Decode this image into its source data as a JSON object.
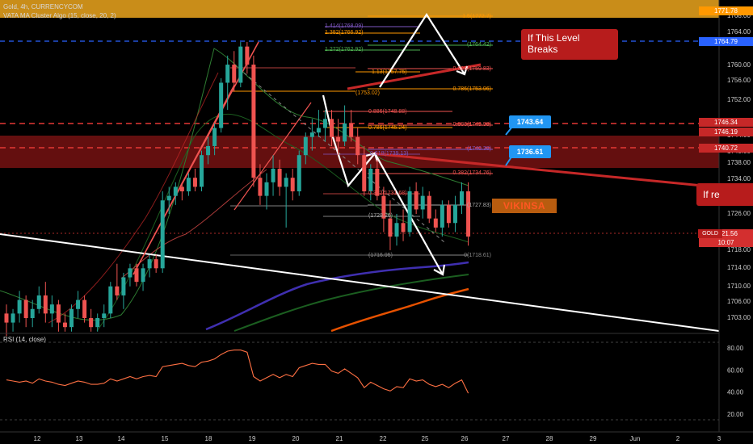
{
  "header": {
    "symbol_line": "Gold, 4h, CURRENCYCOM",
    "indicator_line": "VATA MA Cluster Algo (15, close, 20, 2)",
    "rsi_line": "RSI (14, close)"
  },
  "price_axis": {
    "ticks": [
      "1768.00",
      "1764.00",
      "1760.00",
      "1756.00",
      "1752.00",
      "1748.00",
      "1744.00",
      "1740.00",
      "1738.00",
      "1734.00",
      "1730.00",
      "1726.00",
      "1722.00",
      "1718.00",
      "1714.00",
      "1710.00",
      "1706.00",
      "1703.00"
    ],
    "tags": [
      {
        "text": "1771.78",
        "color": "#ff9800"
      },
      {
        "text": "1764.79",
        "color": "#2962ff"
      },
      {
        "text": "1746.34",
        "color": "#c62828"
      },
      {
        "text": "1746.19",
        "color": "#c62828"
      },
      {
        "text": "1740.72",
        "color": "#c62828"
      },
      {
        "text": "1721.56",
        "color": "#d32f2f"
      },
      {
        "text": "10:07",
        "color": "#d32f2f"
      }
    ],
    "gold_tag": "GOLD"
  },
  "rsi_axis": {
    "ticks": [
      "80.00",
      "60.00",
      "40.00",
      "20.00"
    ]
  },
  "time_axis": {
    "ticks": [
      "12",
      "13",
      "14",
      "15",
      "18",
      "19",
      "20",
      "21",
      "22",
      "25",
      "26",
      "27",
      "28",
      "29",
      "Jun",
      "2",
      "3"
    ]
  },
  "annotations": {
    "callout_top": "If This Level Breaks",
    "callout_right": "If re",
    "label_1": "1743.64",
    "label_2": "1736.61",
    "brand": "VIKINSA"
  },
  "fib_upper": [
    {
      "text": "1.414(1768.09)",
      "color": "#7e57c2"
    },
    {
      "text": "1.382(1766.92)",
      "color": "#ff9800"
    },
    {
      "text": "1.272(1762.92)",
      "color": "#4caf50"
    },
    {
      "text": "1.13(1757.75)",
      "color": "#ff9800"
    },
    {
      "text": "(1753.02)",
      "color": "#ff9800"
    }
  ],
  "fib_mid": [
    {
      "text": "0.886(1748.88)",
      "color": "#ef5350"
    },
    {
      "text": "0.786(1745.24)",
      "color": "#ff9800"
    }
  ],
  "fib_right": [
    {
      "text": "1.5(1772.7)",
      "color": "#ff9800"
    },
    {
      "text": "(1764.42)",
      "color": "#4caf50"
    },
    {
      "text": "0.886(1759.83)",
      "color": "#ef5350"
    },
    {
      "text": "0.786(1753.96)",
      "color": "#ff9800"
    },
    {
      "text": "0.886(1749.98)",
      "color": "#ef5350"
    },
    {
      "text": "(1740.38)",
      "color": "#7e57c2"
    },
    {
      "text": "0.382(1734.76)",
      "color": "#ef5350"
    },
    {
      "text": "(1727.83)",
      "color": "#aaaaaa"
    },
    {
      "text": "0(1718.61)",
      "color": "#888888"
    }
  ],
  "fib_lower": [
    {
      "text": "0.618(1739.13)",
      "color": "#7e57c2"
    },
    {
      "text": "0.382(1731.68)",
      "color": "#ef5350"
    },
    {
      "text": "(1728.26)",
      "color": "#aaaaaa"
    },
    {
      "text": "(1716.95)",
      "color": "#888888"
    }
  ],
  "chart_data": {
    "type": "candlestick",
    "y_range": [
      1701.5,
      1772.5
    ],
    "candles": [
      [
        1705,
        1707,
        1700,
        1703
      ],
      [
        1703,
        1706,
        1701,
        1705
      ],
      [
        1705,
        1710,
        1703,
        1708
      ],
      [
        1708,
        1709,
        1702,
        1704
      ],
      [
        1704,
        1708,
        1702,
        1706
      ],
      [
        1706,
        1711,
        1705,
        1709
      ],
      [
        1709,
        1712,
        1703,
        1705
      ],
      [
        1705,
        1709,
        1702,
        1707
      ],
      [
        1707,
        1708,
        1701,
        1703
      ],
      [
        1703,
        1705,
        1701,
        1702
      ],
      [
        1702,
        1707,
        1701,
        1706
      ],
      [
        1706,
        1710,
        1704,
        1708
      ],
      [
        1708,
        1709,
        1703,
        1704
      ],
      [
        1704,
        1706,
        1701,
        1702
      ],
      [
        1702,
        1705,
        1701,
        1704
      ],
      [
        1704,
        1707,
        1702,
        1705
      ],
      [
        1705,
        1712,
        1704,
        1711
      ],
      [
        1711,
        1716,
        1708,
        1709
      ],
      [
        1709,
        1714,
        1706,
        1713
      ],
      [
        1713,
        1716,
        1711,
        1715
      ],
      [
        1715,
        1716,
        1711,
        1712
      ],
      [
        1712,
        1716,
        1710,
        1715
      ],
      [
        1715,
        1718,
        1713,
        1717
      ],
      [
        1717,
        1718,
        1714,
        1715
      ],
      [
        1715,
        1732,
        1714,
        1730
      ],
      [
        1730,
        1733,
        1727,
        1731
      ],
      [
        1731,
        1734,
        1729,
        1733
      ],
      [
        1733,
        1734,
        1730,
        1732
      ],
      [
        1732,
        1736,
        1731,
        1735
      ],
      [
        1735,
        1737,
        1732,
        1733
      ],
      [
        1733,
        1741,
        1732,
        1740
      ],
      [
        1740,
        1744,
        1738,
        1742
      ],
      [
        1742,
        1747,
        1740,
        1746
      ],
      [
        1746,
        1757,
        1745,
        1756
      ],
      [
        1756,
        1762,
        1750,
        1760
      ],
      [
        1760,
        1763,
        1754,
        1756
      ],
      [
        1756,
        1765,
        1755,
        1764
      ],
      [
        1764,
        1765,
        1758,
        1760
      ],
      [
        1760,
        1762,
        1733,
        1735
      ],
      [
        1735,
        1738,
        1729,
        1731
      ],
      [
        1731,
        1736,
        1728,
        1734
      ],
      [
        1734,
        1740,
        1731,
        1737
      ],
      [
        1737,
        1739,
        1731,
        1733
      ],
      [
        1733,
        1736,
        1724,
        1735
      ],
      [
        1735,
        1737,
        1730,
        1732
      ],
      [
        1732,
        1741,
        1731,
        1740
      ],
      [
        1740,
        1745,
        1738,
        1744
      ],
      [
        1744,
        1748,
        1741,
        1745
      ],
      [
        1745,
        1750,
        1744,
        1746
      ],
      [
        1746,
        1750,
        1743,
        1748
      ],
      [
        1748,
        1750,
        1742,
        1744
      ],
      [
        1744,
        1748,
        1740,
        1743
      ],
      [
        1743,
        1751,
        1742,
        1747
      ],
      [
        1747,
        1750,
        1743,
        1744
      ],
      [
        1744,
        1746,
        1738,
        1740
      ],
      [
        1740,
        1742,
        1731,
        1732
      ],
      [
        1732,
        1738,
        1730,
        1737
      ],
      [
        1737,
        1739,
        1730,
        1731
      ],
      [
        1731,
        1733,
        1723,
        1726
      ],
      [
        1726,
        1730,
        1719,
        1722
      ],
      [
        1722,
        1727,
        1720,
        1725
      ],
      [
        1725,
        1728,
        1721,
        1723
      ],
      [
        1723,
        1733,
        1722,
        1732
      ],
      [
        1732,
        1734,
        1727,
        1728
      ],
      [
        1728,
        1733,
        1726,
        1731
      ],
      [
        1731,
        1732,
        1725,
        1726
      ],
      [
        1726,
        1728,
        1723,
        1724
      ],
      [
        1724,
        1730,
        1722,
        1729
      ],
      [
        1729,
        1730,
        1724,
        1725
      ],
      [
        1725,
        1731,
        1723,
        1729
      ],
      [
        1729,
        1734,
        1727,
        1732
      ],
      [
        1732,
        1734,
        1720,
        1722
      ]
    ],
    "rsi": [
      51,
      50,
      49,
      50,
      48,
      52,
      50,
      49,
      47,
      46,
      48,
      50,
      49,
      47,
      47,
      48,
      52,
      50,
      52,
      54,
      52,
      54,
      55,
      54,
      63,
      64,
      65,
      66,
      64,
      63,
      67,
      68,
      70,
      74,
      77,
      78,
      78,
      76,
      54,
      50,
      53,
      56,
      53,
      56,
      54,
      62,
      64,
      66,
      65,
      65,
      59,
      57,
      61,
      57,
      53,
      44,
      49,
      46,
      43,
      41,
      45,
      44,
      52,
      50,
      51,
      47,
      45,
      47,
      44,
      48,
      51,
      39
    ],
    "rsi_range": [
      15,
      85
    ]
  }
}
